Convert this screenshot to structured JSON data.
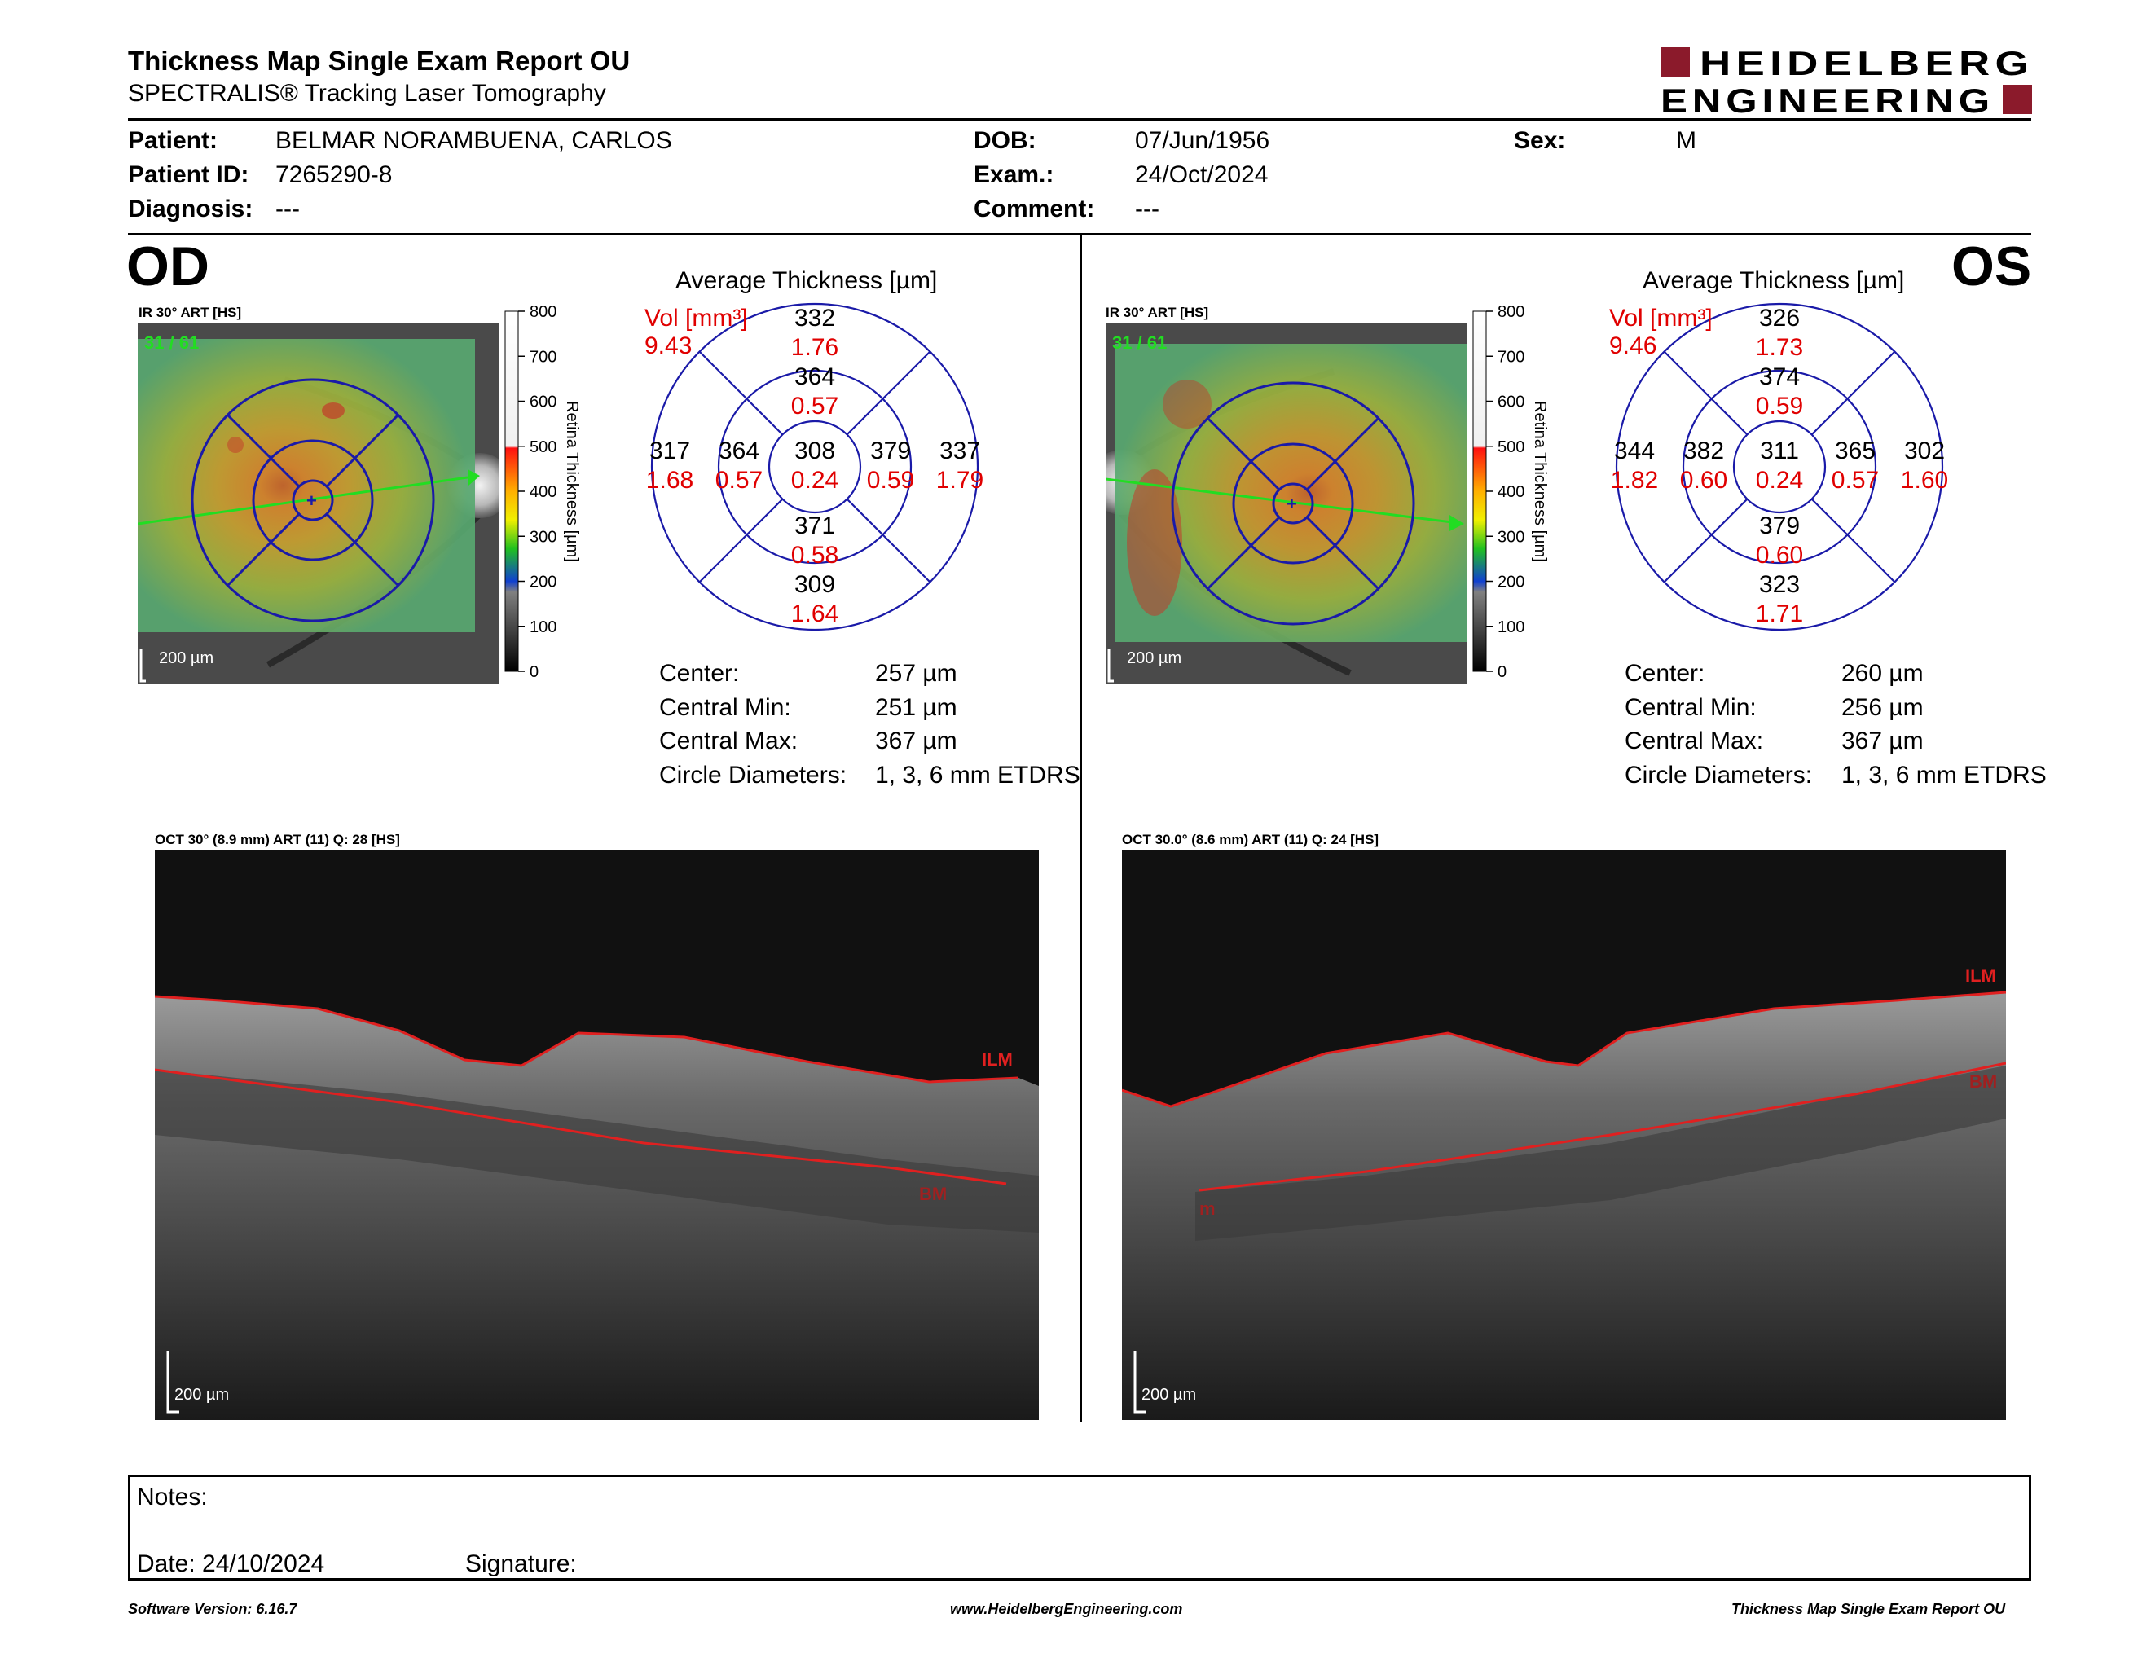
{
  "header": {
    "title": "Thickness Map Single Exam Report OU",
    "subtitle": "SPECTRALIS® Tracking Laser Tomography",
    "logo_line1": "HEIDELBERG",
    "logo_line2": "ENGINEERING",
    "brand_color": "#8b1a2b"
  },
  "patient": {
    "patient_label": "Patient:",
    "patient_value": "BELMAR NORAMBUENA, CARLOS",
    "id_label": "Patient ID:",
    "id_value": "7265290-8",
    "diagnosis_label": "Diagnosis:",
    "diagnosis_value": "---",
    "dob_label": "DOB:",
    "dob_value": "07/Jun/1956",
    "exam_label": "Exam.:",
    "exam_value": "24/Oct/2024",
    "comment_label": "Comment:",
    "comment_value": "---",
    "sex_label": "Sex:",
    "sex_value": "M"
  },
  "od": {
    "eye": "OD",
    "ir_caption": "IR 30° ART [HS]",
    "frame_count": "31 / 61",
    "scale_label": "200 µm",
    "colorbar_ticks": [
      "800",
      "700",
      "600",
      "500",
      "400",
      "300",
      "200",
      "100",
      "0"
    ],
    "colorbar_title": "Retina Thickness [µm]",
    "avg_title": "Average Thickness [µm]",
    "vol_label": "Vol [mm³]",
    "vol_total": "9.43",
    "etdrs": {
      "center": {
        "t": "308",
        "v": "0.24"
      },
      "inner_sup": {
        "t": "364",
        "v": "0.57"
      },
      "inner_inf": {
        "t": "371",
        "v": "0.58"
      },
      "inner_left": {
        "t": "364",
        "v": "0.57"
      },
      "inner_right": {
        "t": "379",
        "v": "0.59"
      },
      "outer_sup": {
        "t": "332",
        "v": "1.76"
      },
      "outer_inf": {
        "t": "309",
        "v": "1.64"
      },
      "outer_left": {
        "t": "317",
        "v": "1.68"
      },
      "outer_right": {
        "t": "337",
        "v": "1.79"
      }
    },
    "stats": [
      {
        "label": "Center:",
        "value": "257 µm"
      },
      {
        "label": "Central Min:",
        "value": "251 µm"
      },
      {
        "label": "Central Max:",
        "value": "367 µm"
      },
      {
        "label": "Circle Diameters:",
        "value": "1, 3, 6 mm ETDRS"
      }
    ],
    "oct_caption": "OCT 30° (8.9 mm) ART (11) Q: 28 [HS]",
    "oct_ilm": "ILM",
    "oct_bm": "BM",
    "oct_scale": "200 µm"
  },
  "os": {
    "eye": "OS",
    "ir_caption": "IR 30° ART [HS]",
    "frame_count": "31 / 61",
    "scale_label": "200 µm",
    "colorbar_ticks": [
      "800",
      "700",
      "600",
      "500",
      "400",
      "300",
      "200",
      "100",
      "0"
    ],
    "colorbar_title": "Retina Thickness [µm]",
    "avg_title": "Average Thickness [µm]",
    "vol_label": "Vol [mm³]",
    "vol_total": "9.46",
    "etdrs": {
      "center": {
        "t": "311",
        "v": "0.24"
      },
      "inner_sup": {
        "t": "374",
        "v": "0.59"
      },
      "inner_inf": {
        "t": "379",
        "v": "0.60"
      },
      "inner_left": {
        "t": "382",
        "v": "0.60"
      },
      "inner_right": {
        "t": "365",
        "v": "0.57"
      },
      "outer_sup": {
        "t": "326",
        "v": "1.73"
      },
      "outer_inf": {
        "t": "323",
        "v": "1.71"
      },
      "outer_left": {
        "t": "344",
        "v": "1.82"
      },
      "outer_right": {
        "t": "302",
        "v": "1.60"
      }
    },
    "stats": [
      {
        "label": "Center:",
        "value": "260 µm"
      },
      {
        "label": "Central Min:",
        "value": "256 µm"
      },
      {
        "label": "Central Max:",
        "value": "367 µm"
      },
      {
        "label": "Circle Diameters:",
        "value": "1, 3, 6 mm ETDRS"
      }
    ],
    "oct_caption": "OCT 30.0° (8.6 mm) ART (11) Q: 24 [HS]",
    "oct_ilm": "ILM",
    "oct_bm": "BM",
    "oct_bm_left": "m",
    "oct_scale": "200 µm"
  },
  "notes": {
    "notes_label": "Notes:",
    "date_label": "Date: 24/10/2024",
    "signature_label": "Signature:"
  },
  "footer": {
    "left": "Software Version: 6.16.7",
    "center": "www.HeidelbergEngineering.com",
    "right": "Thickness Map Single Exam Report OU"
  },
  "colors": {
    "circle_blue": "#1a1aa8",
    "value_red": "#e00000",
    "scan_green": "#22dd22"
  }
}
